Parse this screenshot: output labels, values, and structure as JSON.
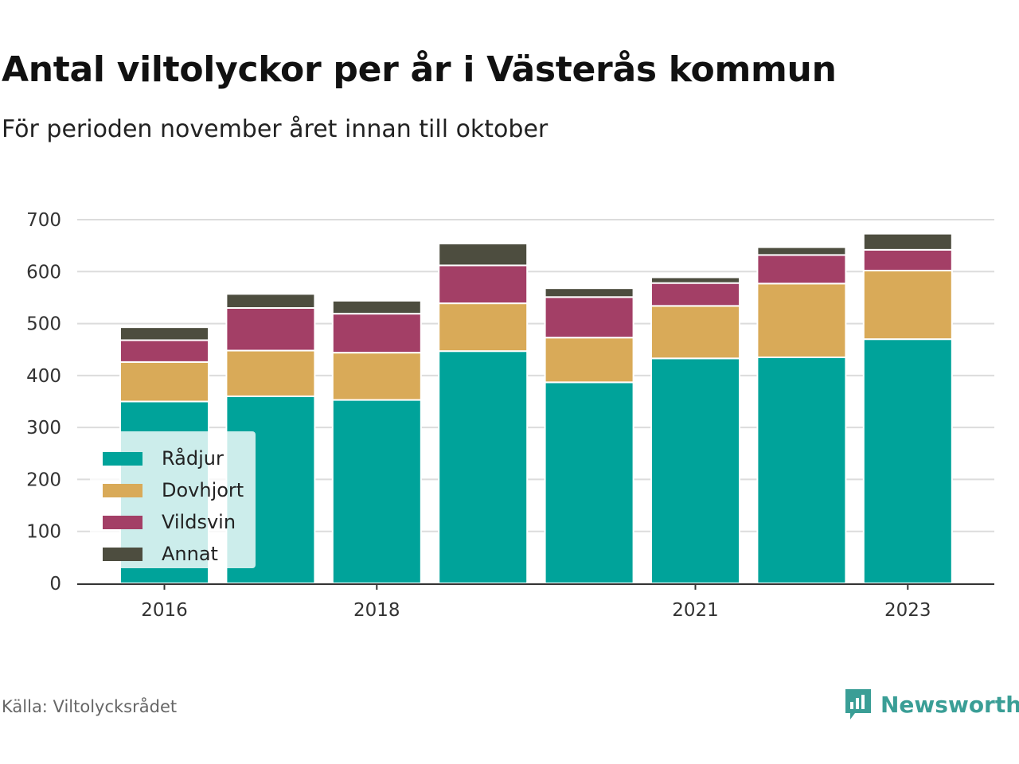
{
  "title": "Antal viltolyckor per år i Västerås kommun",
  "subtitle": "För perioden november året innan till oktober",
  "source": "Källa: Viltolycksrådet",
  "brand": {
    "name": "Newsworthy",
    "icon": "newsworthy-logo-icon"
  },
  "colors": {
    "Rådjur": "#00a39a",
    "Dovhjort": "#d9aa58",
    "Vildsvin": "#a33f66",
    "Annat": "#4d4d3f",
    "grid": "#dcdcdc",
    "axis": "#333333"
  },
  "chart_data": {
    "type": "bar",
    "stacked": true,
    "categories": [
      "2016",
      "2017",
      "2018",
      "2019",
      "2020",
      "2021",
      "2022",
      "2023"
    ],
    "x_tick_labels": [
      "2016",
      "",
      "2018",
      "",
      "",
      "2021",
      "",
      "2023"
    ],
    "series": [
      {
        "name": "Rådjur",
        "values": [
          350,
          360,
          353,
          447,
          387,
          433,
          435,
          470
        ]
      },
      {
        "name": "Dovhjort",
        "values": [
          76,
          88,
          91,
          92,
          86,
          101,
          142,
          132
        ]
      },
      {
        "name": "Vildsvin",
        "values": [
          42,
          82,
          75,
          73,
          78,
          44,
          55,
          40
        ]
      },
      {
        "name": "Annat",
        "values": [
          25,
          27,
          25,
          42,
          17,
          11,
          15,
          31
        ]
      }
    ],
    "ylim": [
      0,
      700
    ],
    "yticks": [
      0,
      100,
      200,
      300,
      400,
      500,
      600,
      700
    ],
    "grid": true,
    "legend": "bottom-left",
    "xlabel": "",
    "ylabel": ""
  }
}
